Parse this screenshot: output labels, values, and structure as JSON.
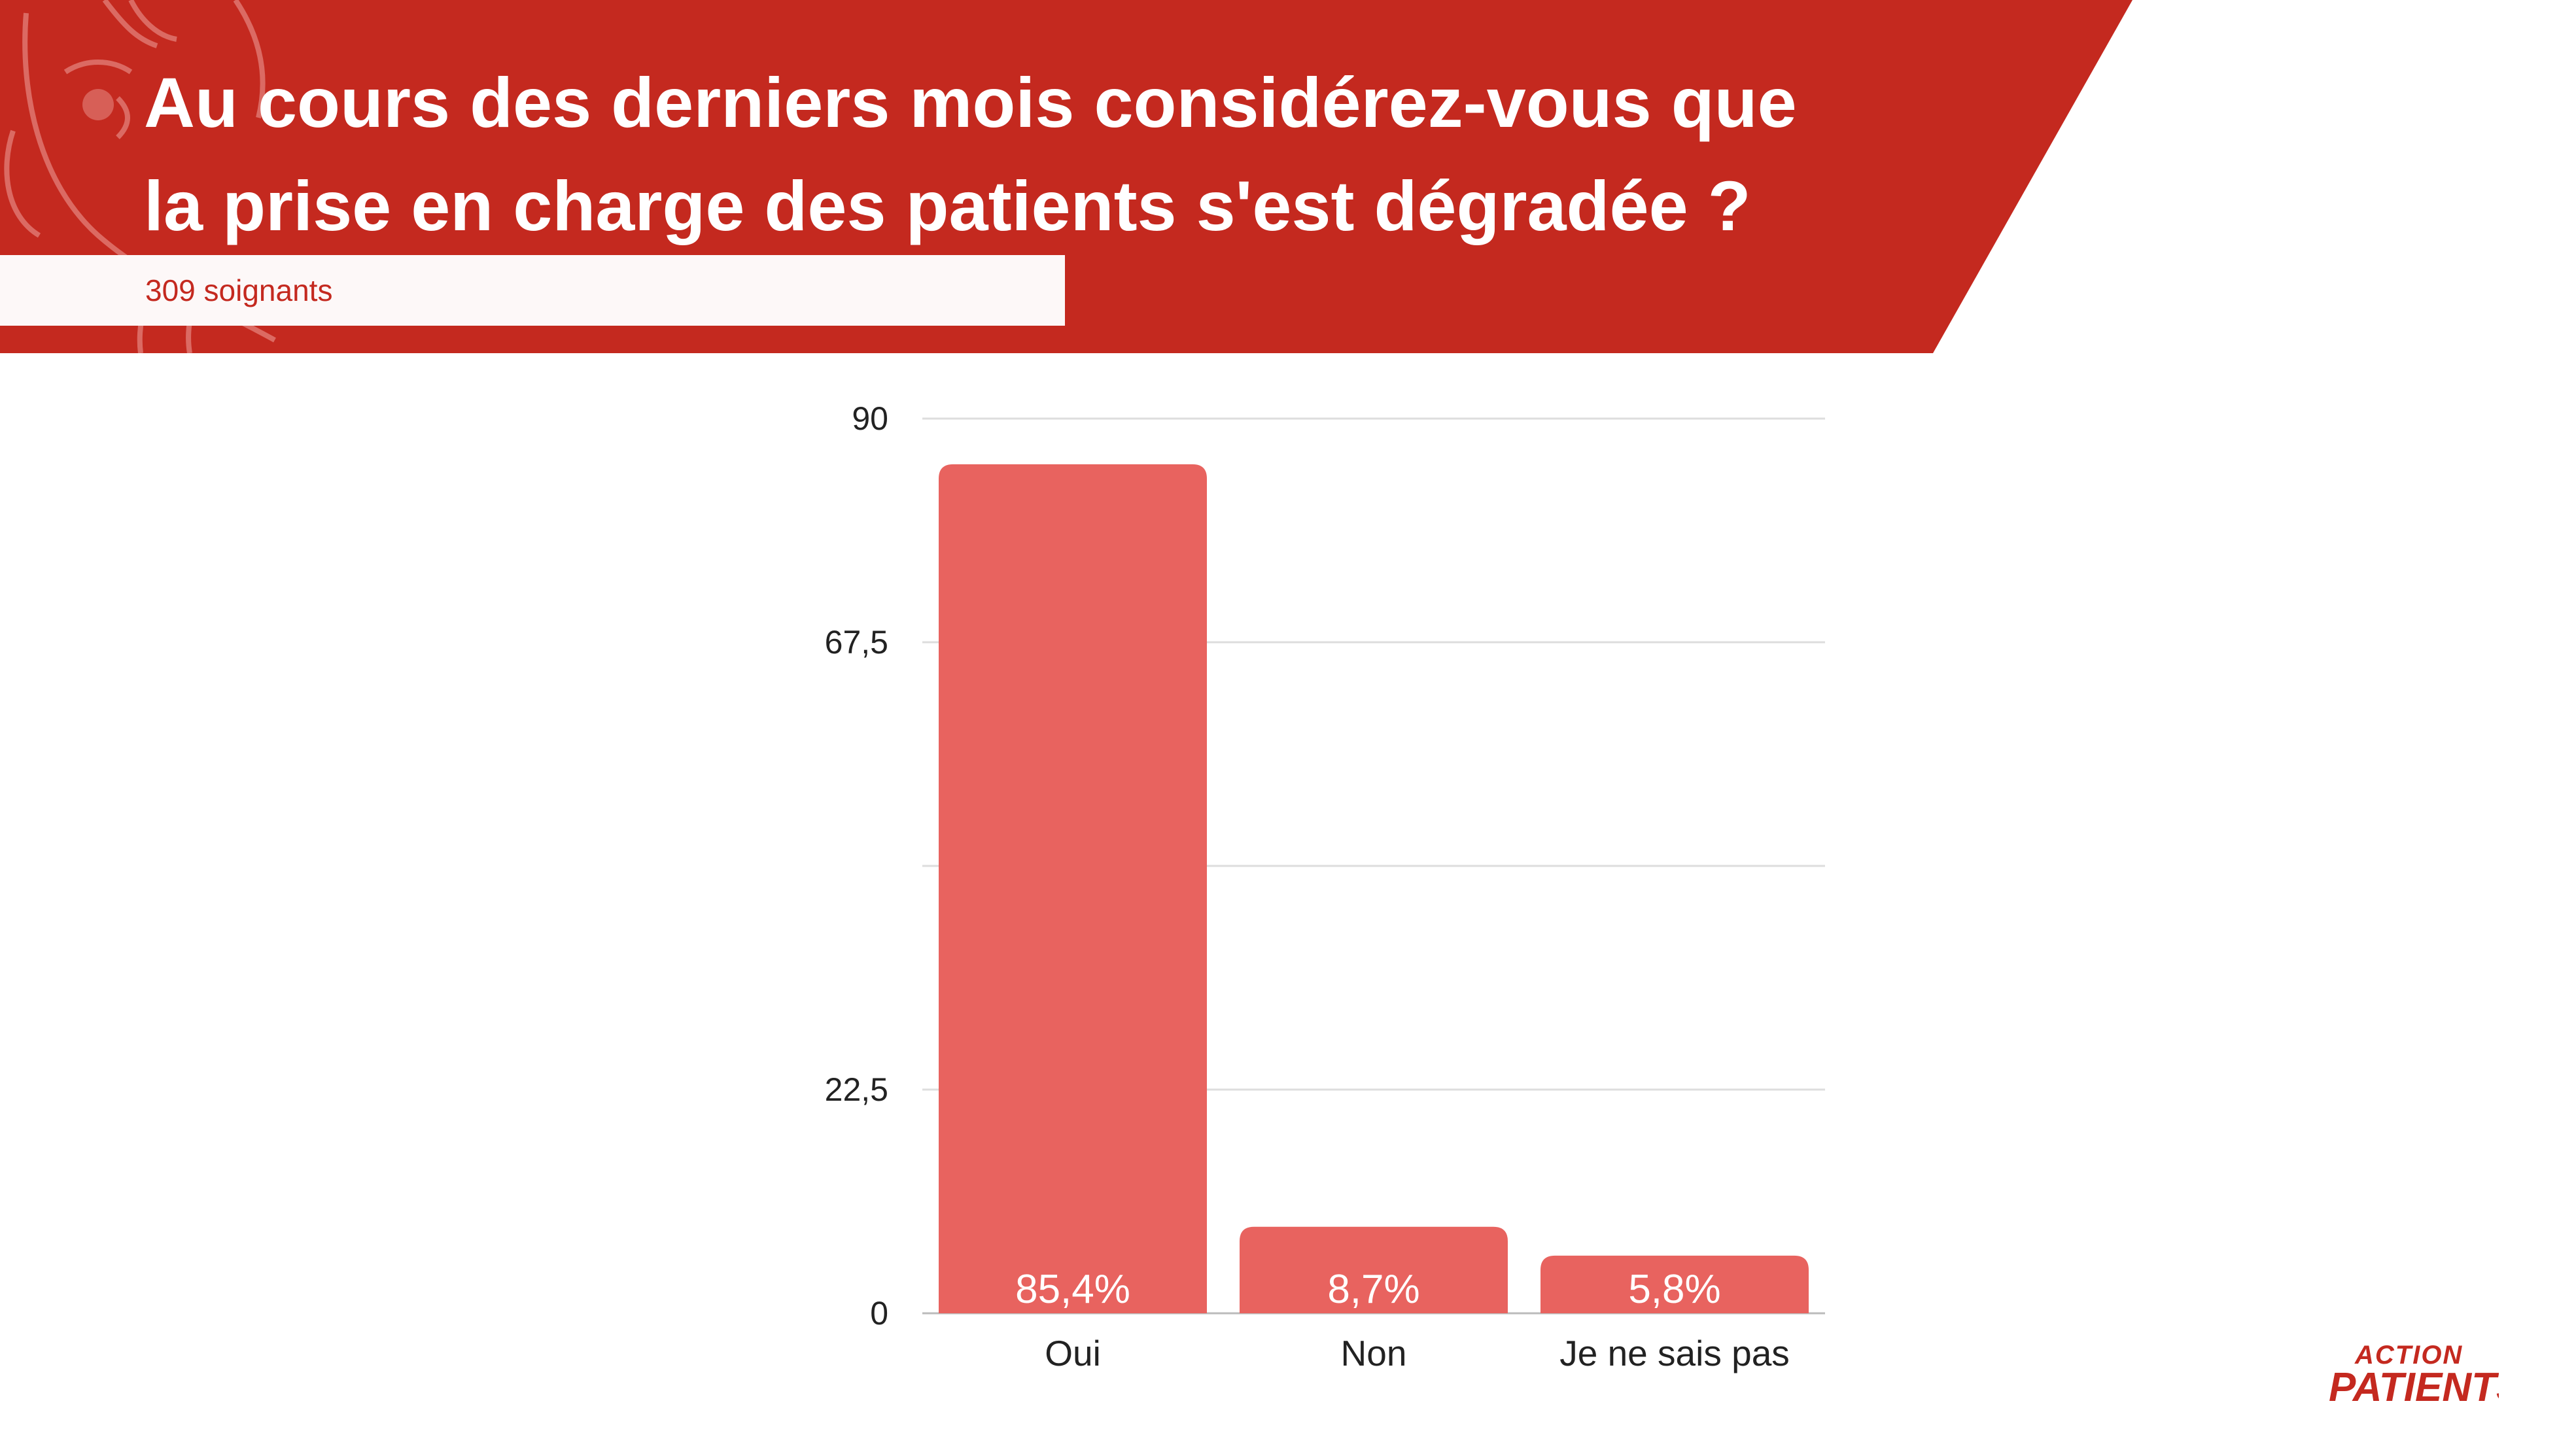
{
  "header": {
    "title_line1": "Au cours des derniers mois considérez-vous que",
    "title_line2": "la prise en charge des patients s'est dégradée ?",
    "subtitle": "309 soignants"
  },
  "colors": {
    "banner": "#c4291f",
    "bar": "#e8635f",
    "grid": "#dddddd",
    "text": "#222222"
  },
  "logo": {
    "line1": "ACTION",
    "line2": "PATIENTS"
  },
  "chart_data": {
    "type": "bar",
    "categories": [
      "Oui",
      "Non",
      "Je ne sais pas"
    ],
    "values": [
      85.4,
      8.7,
      5.8
    ],
    "data_labels": [
      "85,4%",
      "8,7%",
      "5,8%"
    ],
    "ytick_labels": [
      "90",
      "67,5",
      "22,5",
      "0"
    ],
    "ytick_values": [
      90,
      67.5,
      22.5,
      0
    ],
    "ylim": [
      0,
      90
    ],
    "grid": true,
    "legend": "none"
  }
}
